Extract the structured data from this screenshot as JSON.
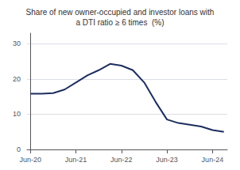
{
  "chart_data": {
    "type": "line",
    "title": "Share of new owner-occupied and investor loans with\na DTI ratio ≥ 6 times  (%)",
    "x": [
      0,
      1,
      2,
      3,
      4,
      5,
      6,
      7,
      8,
      9,
      10,
      11,
      12,
      13,
      14,
      15,
      16,
      17
    ],
    "values": [
      15.8,
      15.8,
      16.0,
      17.0,
      19.0,
      21.0,
      22.5,
      24.3,
      23.8,
      22.5,
      19.0,
      13.5,
      8.5,
      7.5,
      7.0,
      6.5,
      5.5,
      5.0
    ],
    "color": "#1c2e5e",
    "xlim": [
      -0.3,
      17.3
    ],
    "xticks": [
      {
        "value": 0,
        "label": "Jun-20"
      },
      {
        "value": 4,
        "label": "Jun-21"
      },
      {
        "value": 8,
        "label": "Jun-22"
      },
      {
        "value": 12,
        "label": "Jun-23"
      },
      {
        "value": 16,
        "label": "Jun-24"
      }
    ],
    "ylim": [
      0,
      33
    ],
    "yticks": [
      0,
      10,
      20,
      30
    ],
    "grid": true
  }
}
